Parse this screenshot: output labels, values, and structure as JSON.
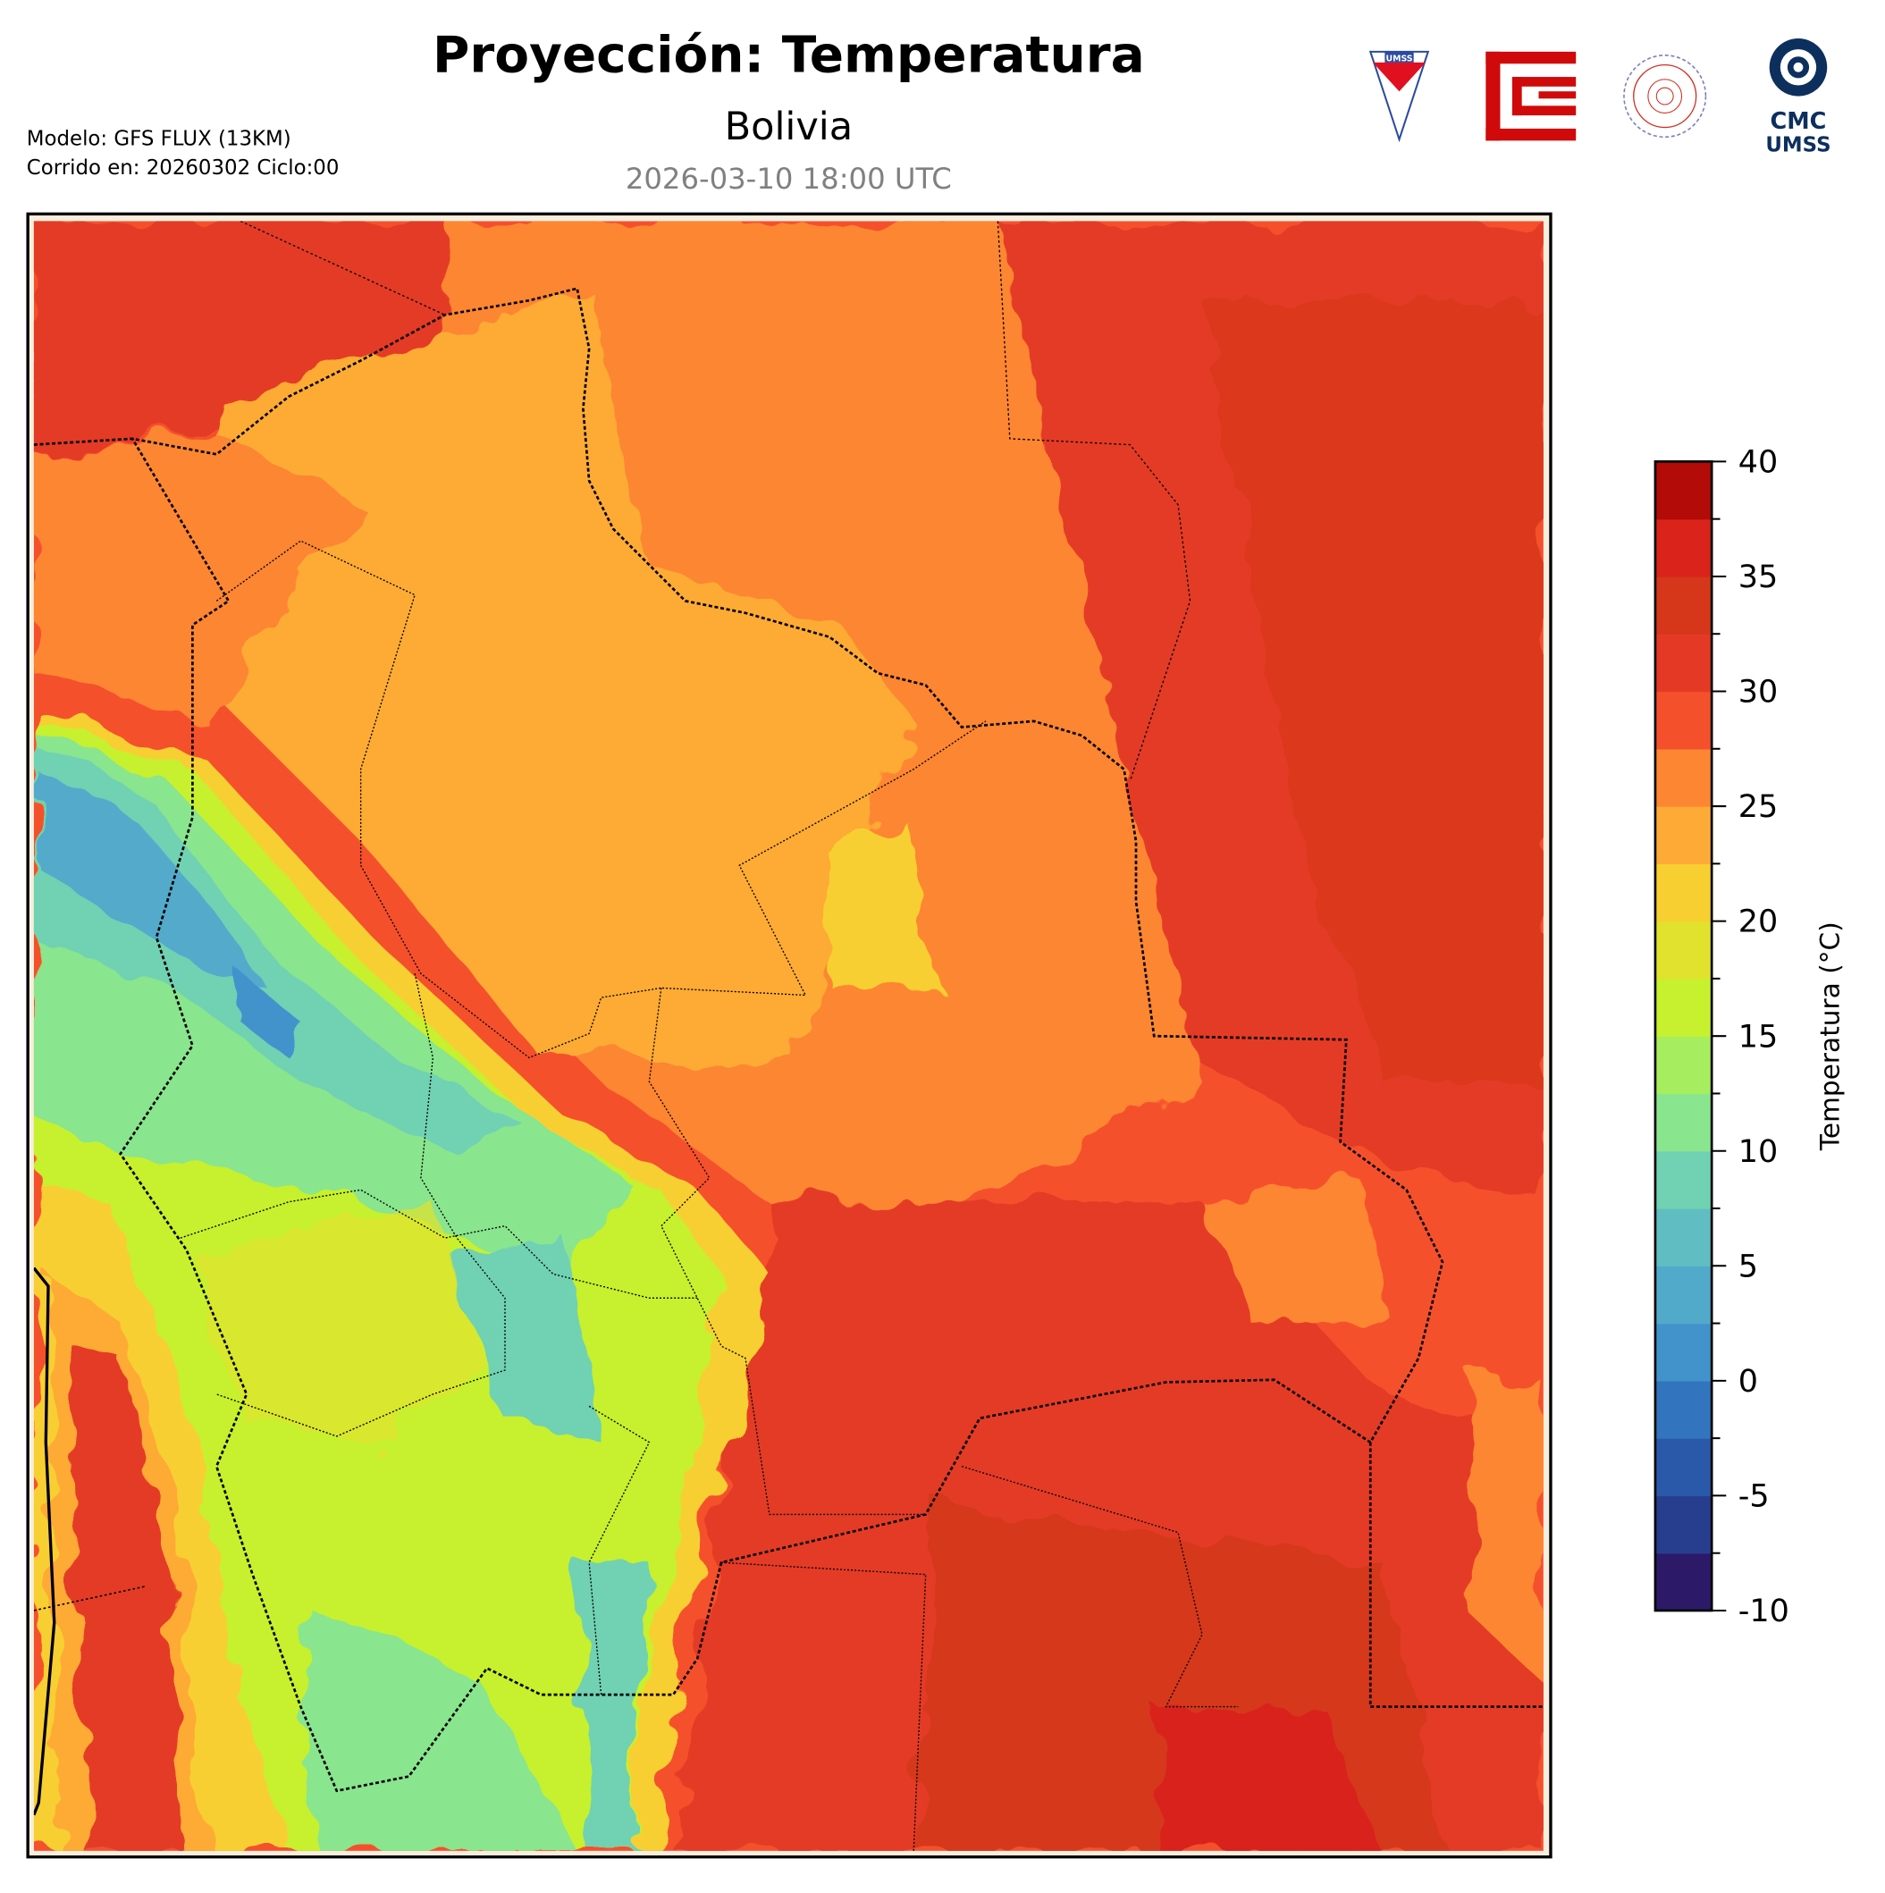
{
  "header": {
    "title": "Proyección: Temperatura",
    "region": "Bolivia",
    "valid_time": "2026-03-10 18:00 UTC",
    "model_line": "Modelo: GFS FLUX (13KM)",
    "run_line": "Corrido en: 20260302 Ciclo:00"
  },
  "logos": [
    {
      "name": "umss-shield",
      "text": "UMSS"
    },
    {
      "name": "fcyt-logo",
      "text": ""
    },
    {
      "name": "departamento-de-fisica-seal",
      "text": "DEPARTAMENTO DE FÍSICA"
    },
    {
      "name": "cmc-umss-logo",
      "text_top": "CMC",
      "text_bottom": "UMSS"
    }
  ],
  "colorbar": {
    "label": "Temperatura (°C)",
    "min": -10,
    "max": 40,
    "step": 2.5,
    "tick_labels": [
      "-10",
      "-5",
      "0",
      "5",
      "10",
      "15",
      "20",
      "25",
      "30",
      "35",
      "40"
    ],
    "colors": [
      "#2c1a69",
      "#273e8e",
      "#2a59aa",
      "#3274bd",
      "#4292cb",
      "#52aacb",
      "#60bdc2",
      "#70d1b3",
      "#89e58e",
      "#a6ee5f",
      "#c7f02e",
      "#e1e22d",
      "#f8cf31",
      "#fdab36",
      "#fd8632",
      "#f5502c",
      "#e43a25",
      "#d6371b",
      "#d9231b",
      "#b30b07"
    ]
  }
}
